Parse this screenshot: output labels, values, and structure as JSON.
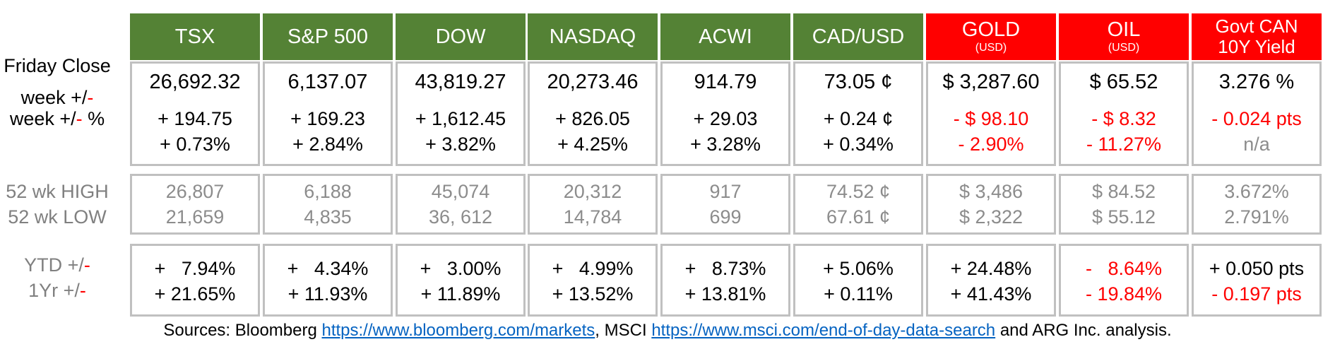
{
  "columns": [
    {
      "name": "TSX",
      "sub": "",
      "color": "green",
      "close": "26,692.32",
      "week_chg": "+ 194.75",
      "week_pct": "+ 0.73%",
      "high": "26,807",
      "low": "21,659",
      "ytd": "+   7.94%",
      "yr": "+ 21.65%",
      "wk_neg": false,
      "pct_neg": false,
      "ytd_neg": false,
      "yr_neg": false,
      "pct_gray": false
    },
    {
      "name": "S&P 500",
      "sub": "",
      "color": "green",
      "close": "6,137.07",
      "week_chg": "+ 169.23",
      "week_pct": "+ 2.84%",
      "high": "6,188",
      "low": "4,835",
      "ytd": "+   4.34%",
      "yr": "+ 11.93%",
      "wk_neg": false,
      "pct_neg": false,
      "ytd_neg": false,
      "yr_neg": false,
      "pct_gray": false
    },
    {
      "name": "DOW",
      "sub": "",
      "color": "green",
      "close": "43,819.27",
      "week_chg": "+ 1,612.45",
      "week_pct": "+ 3.82%",
      "high": "45,074",
      "low": "36, 612",
      "ytd": "+   3.00%",
      "yr": "+ 11.89%",
      "wk_neg": false,
      "pct_neg": false,
      "ytd_neg": false,
      "yr_neg": false,
      "pct_gray": false
    },
    {
      "name": "NASDAQ",
      "sub": "",
      "color": "green",
      "close": "20,273.46",
      "week_chg": "+ 826.05",
      "week_pct": "+ 4.25%",
      "high": "20,312",
      "low": "14,784",
      "ytd": "+   4.99%",
      "yr": "+ 13.52%",
      "wk_neg": false,
      "pct_neg": false,
      "ytd_neg": false,
      "yr_neg": false,
      "pct_gray": false
    },
    {
      "name": "ACWI",
      "sub": "",
      "color": "green",
      "close": "914.79",
      "week_chg": "+ 29.03",
      "week_pct": "+ 3.28%",
      "high": "917",
      "low": "699",
      "ytd": "+   8.73%",
      "yr": "+ 13.81%",
      "wk_neg": false,
      "pct_neg": false,
      "ytd_neg": false,
      "yr_neg": false,
      "pct_gray": false
    },
    {
      "name": "CAD/USD",
      "sub": "",
      "color": "green",
      "close": "73.05 ¢",
      "week_chg": "+ 0.24 ¢",
      "week_pct": "+ 0.34%",
      "high": "74.52 ¢",
      "low": "67.61 ¢",
      "ytd": "+ 5.06%",
      "yr": "+ 0.11%",
      "wk_neg": false,
      "pct_neg": false,
      "ytd_neg": false,
      "yr_neg": false,
      "pct_gray": false
    },
    {
      "name": "GOLD",
      "sub": "(USD)",
      "color": "red",
      "close": "$ 3,287.60",
      "week_chg": "- $ 98.10",
      "week_pct": "- 2.90%",
      "high": "$ 3,486",
      "low": "$ 2,322",
      "ytd": "+ 24.48%",
      "yr": "+ 41.43%",
      "wk_neg": true,
      "pct_neg": true,
      "ytd_neg": false,
      "yr_neg": false,
      "pct_gray": false
    },
    {
      "name": "OIL",
      "sub": "(USD)",
      "color": "red",
      "close": "$ 65.52",
      "week_chg": "- $ 8.32",
      "week_pct": "- 11.27%",
      "high": "$ 84.52",
      "low": "$ 55.12",
      "ytd": "-   8.64%",
      "yr": "- 19.84%",
      "wk_neg": true,
      "pct_neg": true,
      "ytd_neg": true,
      "yr_neg": true,
      "pct_gray": false
    },
    {
      "name": "Govt CAN",
      "name2": "10Y Yield",
      "sub": "",
      "color": "red",
      "close": "3.276 %",
      "week_chg": "- 0.024 pts",
      "week_pct": "n/a",
      "high": "3.672%",
      "low": "2.791%",
      "ytd": "+ 0.050 pts",
      "yr": "- 0.197 pts",
      "wk_neg": true,
      "pct_neg": false,
      "ytd_neg": false,
      "yr_neg": true,
      "pct_gray": true
    }
  ],
  "labels": {
    "friday_close": "Friday Close",
    "week_chg_prefix": "week +/",
    "week_chg_dash": "-",
    "week_pct_prefix": "week +/",
    "week_pct_dash": "-",
    "week_pct_suffix": " %",
    "high": "52 wk HIGH",
    "low": "52 wk LOW",
    "ytd_prefix": "YTD +/",
    "ytd_dash": "-",
    "yr_prefix": "1Yr +/",
    "yr_dash": "-"
  },
  "sources": {
    "prefix": "Sources: Bloomberg ",
    "link1": "https://www.bloomberg.com/markets",
    "mid": ", MSCI ",
    "link2": "https://www.msci.com/end-of-day-data-search",
    "suffix": " and ARG Inc. analysis."
  },
  "colors": {
    "green": "#548235",
    "red": "#ff0000",
    "border": "#c0c0c0",
    "gray_text": "#8c8c8c"
  }
}
